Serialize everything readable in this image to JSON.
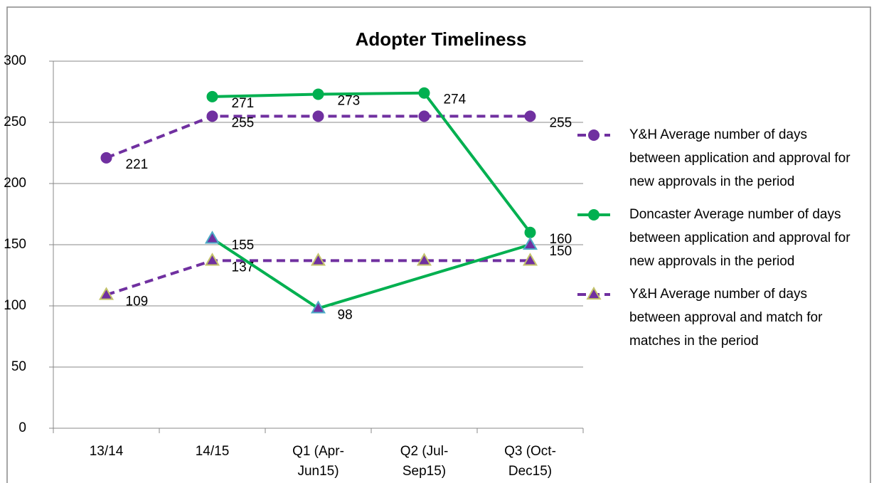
{
  "chart_data": {
    "type": "line",
    "title": "Adopter Timeliness",
    "categories": [
      "13/14",
      "14/15",
      "Q1 (Apr-Jun15)",
      "Q2 (Jul-Sep15)",
      "Q3 (Oct-Dec15)"
    ],
    "ylim": [
      0,
      300
    ],
    "yticks": [
      0,
      50,
      100,
      150,
      200,
      250,
      300
    ],
    "grid": true,
    "legend": "right",
    "series": [
      {
        "name": "Y&H Average number of days between application and approval for new approvals in the period",
        "color": "#7030a0",
        "dashed": true,
        "marker": "circle",
        "marker_color": "#7030a0",
        "values": [
          221,
          255,
          255,
          255,
          255
        ],
        "show_labels": [
          true,
          true,
          false,
          false,
          true
        ]
      },
      {
        "name": "Doncaster Average number of days between application and approval for new approvals in the period",
        "color": "#00b050",
        "dashed": false,
        "marker": "circle",
        "marker_color": "#00b050",
        "values": [
          null,
          271,
          273,
          274,
          160
        ],
        "show_labels": [
          false,
          true,
          true,
          true,
          true
        ]
      },
      {
        "name": "Y&H Average number of days between approval and match for matches in the period",
        "color": "#7030a0",
        "dashed": true,
        "marker": "triangle",
        "marker_color": "#7030a0",
        "marker_edge": "#c3c36a",
        "values": [
          109,
          137,
          137,
          137,
          137
        ],
        "show_labels": [
          true,
          true,
          false,
          false,
          false
        ]
      },
      {
        "color": "#00b050",
        "dashed": false,
        "marker": "triangle",
        "marker_color": "#7030a0",
        "marker_edge": "#4bacc6",
        "connect_gaps": true,
        "values": [
          null,
          155,
          98,
          null,
          150
        ],
        "show_labels": [
          false,
          true,
          true,
          false,
          true
        ]
      }
    ]
  }
}
